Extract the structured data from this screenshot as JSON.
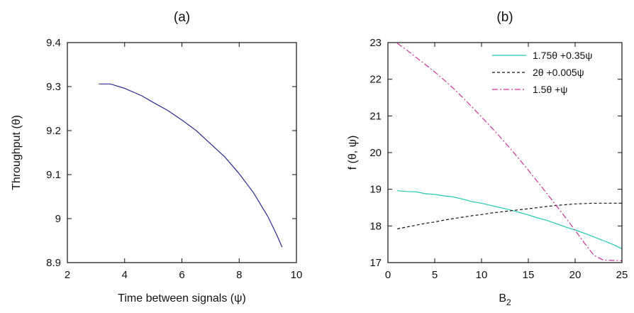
{
  "chart_data": [
    {
      "type": "line",
      "title": "(a)",
      "xlabel": "Time between signals (ψ)",
      "ylabel": "Throughput (θ)",
      "xlim": [
        2,
        10
      ],
      "ylim": [
        8.9,
        9.4
      ],
      "xticks": [
        2,
        4,
        6,
        8,
        10
      ],
      "yticks": [
        8.9,
        9,
        9.1,
        9.2,
        9.3,
        9.4
      ],
      "ytick_labels": [
        "8.9",
        "9",
        "9.1",
        "9.2",
        "9.3",
        "9.4"
      ],
      "grid": false,
      "series": [
        {
          "color": "#2b2b8c",
          "dash": "none",
          "x": [
            3.1,
            3.5,
            4.0,
            4.6,
            5.0,
            5.5,
            6.0,
            6.5,
            7.0,
            7.5,
            8.0,
            8.5,
            9.0,
            9.3,
            9.5
          ],
          "y": [
            9.306,
            9.306,
            9.296,
            9.279,
            9.264,
            9.246,
            9.224,
            9.2,
            9.17,
            9.14,
            9.102,
            9.059,
            9.005,
            8.965,
            8.935
          ]
        }
      ]
    },
    {
      "type": "line",
      "title": "(b)",
      "xlabel": "B",
      "xlabel_sub": "2",
      "ylabel": "f (θ, ψ)",
      "xlim": [
        0,
        25
      ],
      "ylim": [
        17,
        23
      ],
      "xticks": [
        0,
        5,
        10,
        15,
        20,
        25
      ],
      "yticks": [
        17,
        18,
        19,
        20,
        21,
        22,
        23
      ],
      "grid": false,
      "legend_position": "top-right",
      "series": [
        {
          "name": "1.75θ +0.35ψ",
          "color": "#1ec8b4",
          "dash": "none",
          "x": [
            1,
            2,
            3,
            4,
            5,
            6,
            7,
            8,
            9,
            10,
            11,
            12,
            13,
            14,
            15,
            16,
            17,
            18,
            19,
            20,
            21,
            22,
            23,
            24,
            25
          ],
          "y": [
            18.96,
            18.94,
            18.93,
            18.88,
            18.86,
            18.82,
            18.79,
            18.73,
            18.66,
            18.62,
            18.56,
            18.5,
            18.44,
            18.37,
            18.3,
            18.22,
            18.15,
            18.06,
            17.97,
            17.89,
            17.8,
            17.7,
            17.6,
            17.5,
            17.38
          ]
        },
        {
          "name": "2θ +0.005ψ",
          "color": "#111111",
          "dash": "4,3",
          "x": [
            1,
            2,
            3,
            4,
            5,
            6,
            7,
            8,
            9,
            10,
            11,
            12,
            13,
            14,
            15,
            16,
            17,
            18,
            19,
            20,
            21,
            22,
            23,
            24,
            25
          ],
          "y": [
            17.92,
            17.97,
            18.02,
            18.07,
            18.11,
            18.16,
            18.2,
            18.24,
            18.28,
            18.31,
            18.35,
            18.38,
            18.41,
            18.44,
            18.47,
            18.5,
            18.53,
            18.56,
            18.58,
            18.6,
            18.61,
            18.62,
            18.62,
            18.62,
            18.62
          ]
        },
        {
          "name": "1.5θ +ψ",
          "color": "#c8329b",
          "dash": "8,3,2,3",
          "x": [
            1,
            2,
            3,
            4,
            5,
            6,
            7,
            8,
            9,
            10,
            11,
            12,
            13,
            14,
            15,
            16,
            17,
            18,
            19,
            20,
            21,
            22,
            23,
            24,
            25
          ],
          "y": [
            22.98,
            22.8,
            22.6,
            22.4,
            22.2,
            21.98,
            21.75,
            21.5,
            21.24,
            20.97,
            20.7,
            20.42,
            20.13,
            19.83,
            19.52,
            19.2,
            18.88,
            18.55,
            18.22,
            17.88,
            17.53,
            17.2,
            17.07,
            17.06,
            17.05
          ]
        }
      ]
    }
  ]
}
